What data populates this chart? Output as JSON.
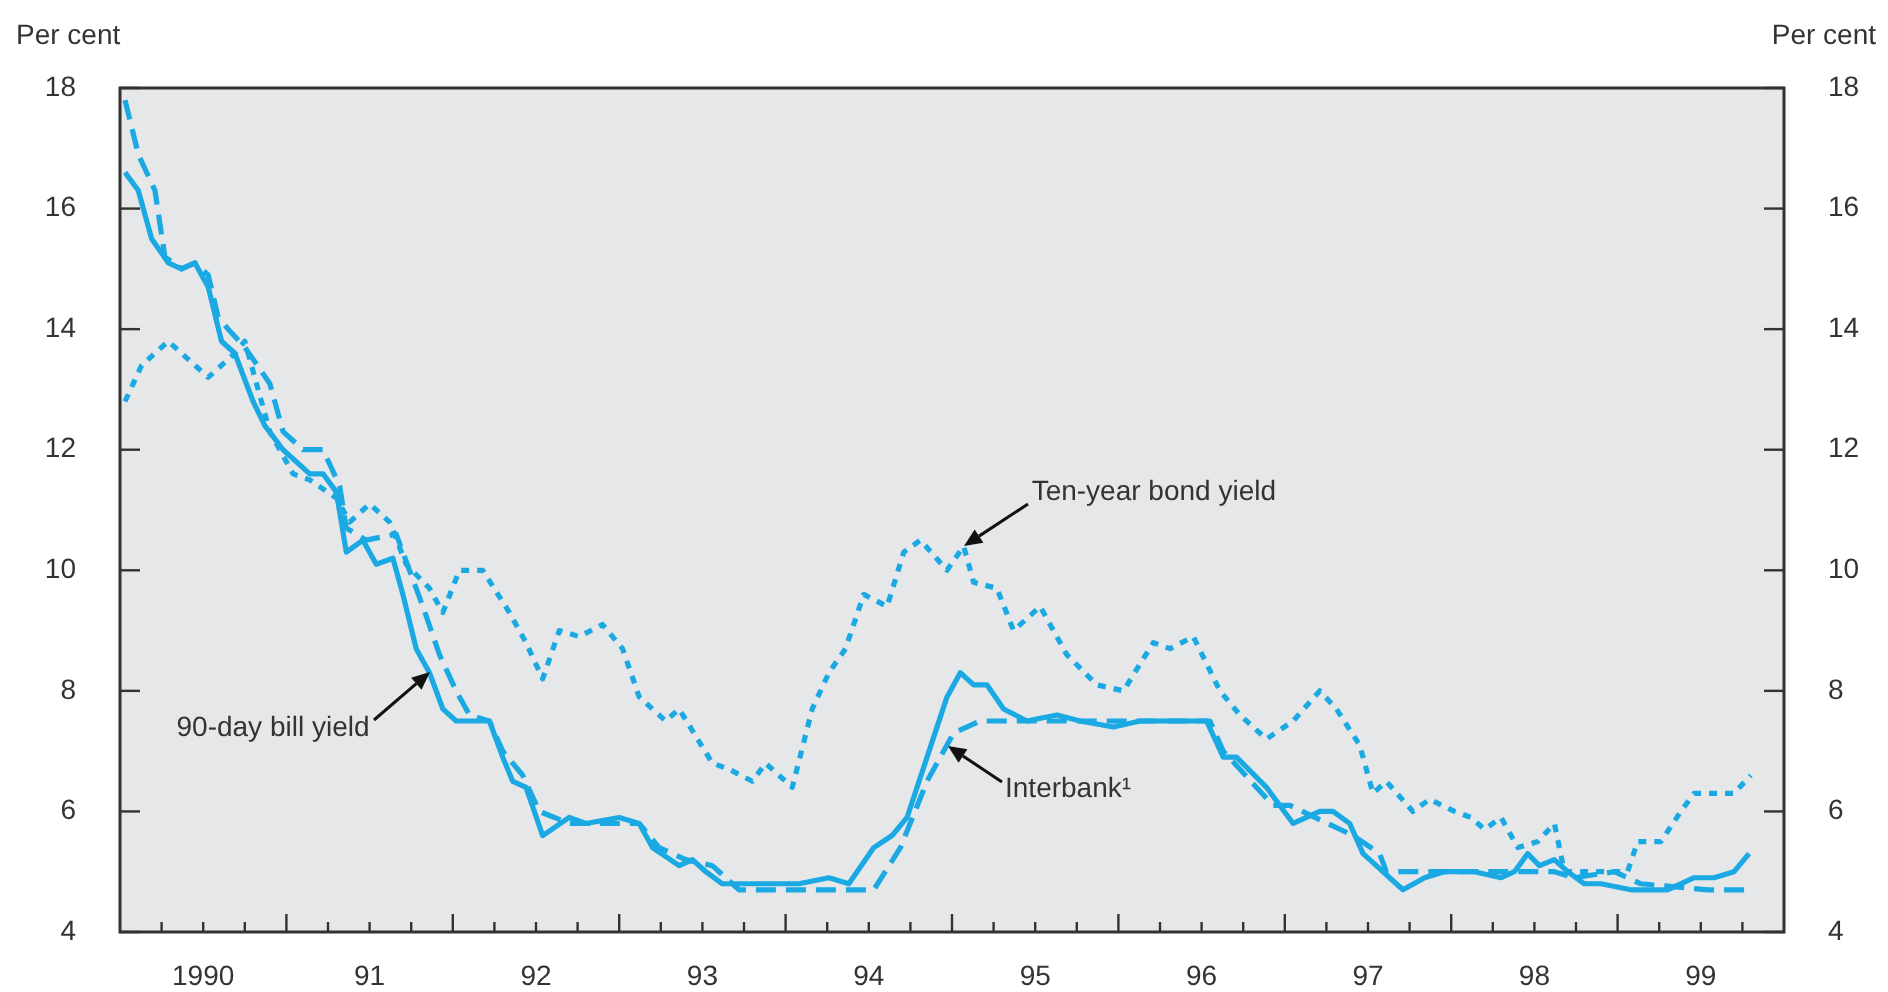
{
  "chart_data": {
    "type": "line",
    "ylabel": "Per cent",
    "y2label": "Per cent",
    "xlim": [
      1989.5,
      1999.5
    ],
    "xticks": [
      {
        "value": 1989.75,
        "label": null
      },
      {
        "value": 1990,
        "label": "1990"
      },
      {
        "value": 1990.25,
        "label": null
      },
      {
        "value": 1990.5,
        "label": null
      },
      {
        "value": 1990.75,
        "label": null
      },
      {
        "value": 1991,
        "label": "91"
      },
      {
        "value": 1991.25,
        "label": null
      },
      {
        "value": 1991.5,
        "label": null
      },
      {
        "value": 1991.75,
        "label": null
      },
      {
        "value": 1992,
        "label": "92"
      },
      {
        "value": 1992.25,
        "label": null
      },
      {
        "value": 1992.5,
        "label": null
      },
      {
        "value": 1992.75,
        "label": null
      },
      {
        "value": 1993,
        "label": "93"
      },
      {
        "value": 1993.25,
        "label": null
      },
      {
        "value": 1993.5,
        "label": null
      },
      {
        "value": 1993.75,
        "label": null
      },
      {
        "value": 1994,
        "label": "94"
      },
      {
        "value": 1994.25,
        "label": null
      },
      {
        "value": 1994.5,
        "label": null
      },
      {
        "value": 1994.75,
        "label": null
      },
      {
        "value": 1995,
        "label": "95"
      },
      {
        "value": 1995.25,
        "label": null
      },
      {
        "value": 1995.5,
        "label": null
      },
      {
        "value": 1995.75,
        "label": null
      },
      {
        "value": 1996,
        "label": "96"
      },
      {
        "value": 1996.25,
        "label": null
      },
      {
        "value": 1996.5,
        "label": null
      },
      {
        "value": 1996.75,
        "label": null
      },
      {
        "value": 1997,
        "label": "97"
      },
      {
        "value": 1997.25,
        "label": null
      },
      {
        "value": 1997.5,
        "label": null
      },
      {
        "value": 1997.75,
        "label": null
      },
      {
        "value": 1998,
        "label": "98"
      },
      {
        "value": 1998.25,
        "label": null
      },
      {
        "value": 1998.5,
        "label": null
      },
      {
        "value": 1998.75,
        "label": null
      },
      {
        "value": 1999,
        "label": "99"
      },
      {
        "value": 1999.25,
        "label": null
      }
    ],
    "ylim": [
      4,
      18
    ],
    "yticks": [
      4,
      6,
      8,
      10,
      12,
      14,
      16,
      18
    ],
    "y2lim": [
      4,
      18
    ],
    "y2ticks": [
      4,
      6,
      8,
      10,
      12,
      14,
      16,
      18
    ],
    "grid": false,
    "legend": false,
    "marker": "none",
    "series": [
      {
        "color": "#1aa9e2",
        "line_style": "solid",
        "x": [
          1989.53,
          1989.61,
          1989.69,
          1989.79,
          1989.87,
          1989.95,
          1990.03,
          1990.11,
          1990.19,
          1990.3,
          1990.37,
          1990.48,
          1990.64,
          1990.72,
          1990.8,
          1990.86,
          1990.96,
          1991.04,
          1991.14,
          1991.2,
          1991.28,
          1991.36,
          1991.44,
          1991.52,
          1991.62,
          1991.72,
          1991.8,
          1991.86,
          1991.94,
          1992.04,
          1992.2,
          1992.3,
          1992.5,
          1992.62,
          1992.7,
          1992.86,
          1992.94,
          1993.02,
          1993.12,
          1993.22,
          1993.42,
          1993.58,
          1993.76,
          1993.88,
          1994.03,
          1994.14,
          1994.23,
          1994.35,
          1994.47,
          1994.55,
          1994.63,
          1994.71,
          1994.81,
          1994.95,
          1995.13,
          1995.27,
          1995.47,
          1995.63,
          1995.79,
          1996.03,
          1996.13,
          1996.21,
          1996.39,
          1996.55,
          1996.71,
          1996.79,
          1996.89,
          1996.97,
          1997.05,
          1997.13,
          1997.21,
          1997.34,
          1997.46,
          1997.64,
          1997.8,
          1997.88,
          1997.96,
          1998.03,
          1998.12,
          1998.2,
          1998.3,
          1998.4,
          1998.58,
          1998.72,
          1998.8,
          1998.96,
          1999.08,
          1999.2,
          1999.29
        ],
        "values": [
          16.6,
          16.3,
          15.5,
          15.1,
          15.0,
          15.1,
          14.7,
          13.8,
          13.6,
          12.8,
          12.4,
          12.0,
          11.6,
          11.6,
          11.3,
          10.3,
          10.5,
          10.1,
          10.2,
          9.6,
          8.7,
          8.3,
          7.7,
          7.5,
          7.5,
          7.5,
          6.9,
          6.5,
          6.4,
          5.6,
          5.9,
          5.8,
          5.9,
          5.8,
          5.4,
          5.1,
          5.2,
          5.0,
          4.8,
          4.8,
          4.8,
          4.8,
          4.9,
          4.8,
          5.4,
          5.6,
          5.9,
          6.9,
          7.9,
          8.3,
          8.1,
          8.1,
          7.7,
          7.5,
          7.6,
          7.5,
          7.4,
          7.5,
          7.5,
          7.5,
          6.9,
          6.9,
          6.4,
          5.8,
          6.0,
          6.0,
          5.8,
          5.3,
          5.1,
          4.9,
          4.7,
          4.9,
          5.0,
          5.0,
          4.9,
          5.0,
          5.3,
          5.1,
          5.2,
          5.0,
          4.8,
          4.8,
          4.7,
          4.7,
          4.7,
          4.9,
          4.9,
          5.0,
          5.3
        ]
      },
      {
        "color": "#1aa9e2",
        "line_style": "dashed",
        "x": [
          1989.53,
          1989.61,
          1989.71,
          1989.77,
          1989.87,
          1989.95,
          1990.03,
          1990.09,
          1990.15,
          1990.25,
          1990.4,
          1990.48,
          1990.6,
          1990.72,
          1990.82,
          1990.86,
          1990.98,
          1991.16,
          1991.24,
          1991.32,
          1991.42,
          1991.52,
          1991.6,
          1991.72,
          1991.8,
          1991.92,
          1992.02,
          1992.2,
          1992.5,
          1992.62,
          1992.74,
          1992.9,
          1993.06,
          1993.22,
          1993.58,
          1993.86,
          1994.03,
          1994.19,
          1994.35,
          1994.51,
          1994.67,
          1994.95,
          1996.05,
          1996.13,
          1996.43,
          1996.53,
          1996.91,
          1997.07,
          1997.11,
          1997.23,
          1997.47,
          1997.88,
          1998.0,
          1998.12,
          1998.24,
          1998.48,
          1998.64,
          1999.04,
          1999.29
        ],
        "values": [
          17.8,
          16.9,
          16.3,
          15.2,
          15.0,
          15.1,
          14.9,
          14.2,
          14.0,
          13.7,
          13.1,
          12.3,
          12.0,
          12.0,
          11.4,
          10.7,
          10.5,
          10.6,
          10.0,
          9.4,
          8.6,
          8.0,
          7.6,
          7.5,
          7.0,
          6.6,
          6.0,
          5.8,
          5.8,
          5.8,
          5.4,
          5.2,
          5.1,
          4.7,
          4.7,
          4.7,
          4.7,
          5.4,
          6.5,
          7.3,
          7.5,
          7.5,
          7.5,
          7.0,
          6.1,
          6.1,
          5.6,
          5.3,
          5.0,
          5.0,
          5.0,
          5.0,
          5.0,
          5.0,
          4.9,
          5.0,
          4.8,
          4.7,
          4.7
        ]
      },
      {
        "color": "#1aa9e2",
        "line_style": "dotted",
        "x": [
          1989.53,
          1989.63,
          1989.79,
          1990.03,
          1990.19,
          1990.25,
          1990.4,
          1990.54,
          1990.64,
          1990.8,
          1990.88,
          1991.0,
          1991.12,
          1991.22,
          1991.36,
          1991.44,
          1991.54,
          1991.68,
          1991.84,
          1991.94,
          1992.04,
          1992.14,
          1992.26,
          1992.4,
          1992.52,
          1992.62,
          1992.78,
          1992.86,
          1993.06,
          1993.16,
          1993.3,
          1993.38,
          1993.54,
          1993.66,
          1993.76,
          1993.86,
          1993.97,
          1994.11,
          1994.21,
          1994.31,
          1994.47,
          1994.57,
          1994.63,
          1994.77,
          1994.87,
          1995.03,
          1995.19,
          1995.37,
          1995.53,
          1995.71,
          1995.81,
          1995.95,
          1996.11,
          1996.23,
          1996.39,
          1996.55,
          1996.71,
          1996.81,
          1996.95,
          1997.03,
          1997.11,
          1997.27,
          1997.37,
          1997.52,
          1997.62,
          1997.7,
          1997.8,
          1997.9,
          1998.02,
          1998.12,
          1998.18,
          1998.32,
          1998.48,
          1998.56,
          1998.62,
          1998.76,
          1998.88,
          1998.96,
          1999.08,
          1999.2,
          1999.3
        ],
        "values": [
          12.8,
          13.4,
          13.8,
          13.2,
          13.6,
          13.8,
          12.3,
          11.6,
          11.5,
          11.2,
          10.8,
          11.1,
          10.8,
          10.1,
          9.7,
          9.3,
          10.0,
          10.0,
          9.3,
          8.8,
          8.2,
          9.0,
          8.9,
          9.1,
          8.7,
          7.9,
          7.5,
          7.7,
          6.8,
          6.7,
          6.5,
          6.8,
          6.4,
          7.7,
          8.3,
          8.7,
          9.6,
          9.4,
          10.3,
          10.5,
          10.0,
          10.4,
          9.8,
          9.7,
          9.0,
          9.4,
          8.6,
          8.1,
          8.0,
          8.8,
          8.7,
          8.9,
          8.0,
          7.6,
          7.2,
          7.5,
          8.0,
          7.7,
          7.1,
          6.3,
          6.5,
          6.0,
          6.2,
          6.0,
          5.9,
          5.7,
          5.9,
          5.4,
          5.5,
          5.8,
          5.0,
          5.0,
          5.0,
          5.0,
          5.5,
          5.5,
          6.0,
          6.3,
          6.3,
          6.3,
          6.6
        ]
      }
    ],
    "annotations": [
      {
        "text": "90-day bill yield",
        "x": 1991.36,
        "y": 8.3
      },
      {
        "text": "Ten-year bond yield",
        "x": 1994.57,
        "y": 10.4
      },
      {
        "text": "Interbank¹",
        "x": 1994.47,
        "y": 7.1
      }
    ]
  }
}
